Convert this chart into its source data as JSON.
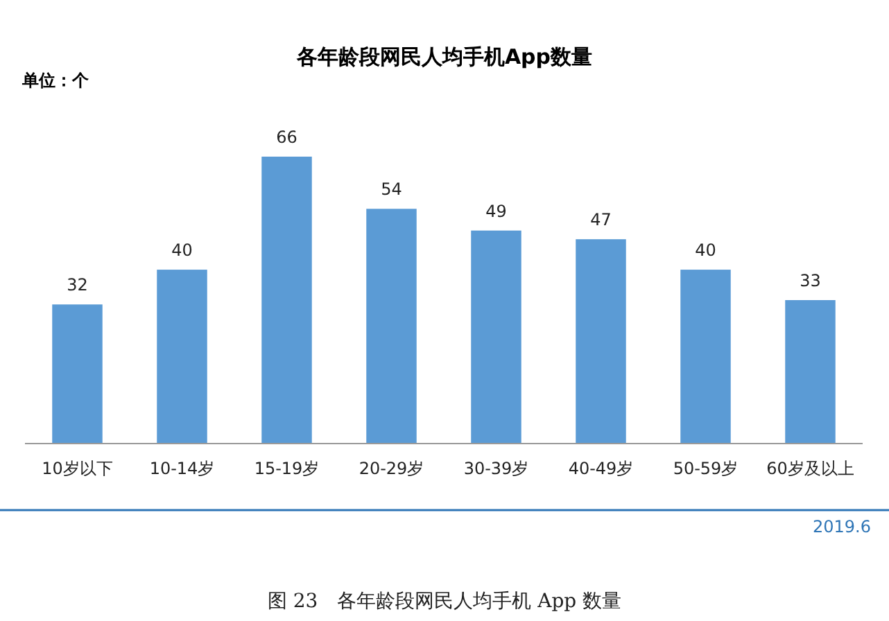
{
  "chart_data": {
    "type": "bar",
    "title": "各年龄段网民人均手机App数量",
    "ylabel": "单位：个",
    "categories": [
      "10岁以下",
      "10-14岁",
      "15-19岁",
      "20-29岁",
      "30-39岁",
      "40-49岁",
      "50-59岁",
      "60岁及以上"
    ],
    "values": [
      32,
      40,
      66,
      54,
      49,
      47,
      40,
      33
    ],
    "color": "#5b9bd5",
    "data_labels": true,
    "annotations": [
      "2019.6",
      "图 23　各年龄段网民人均手机 App 数量"
    ]
  }
}
